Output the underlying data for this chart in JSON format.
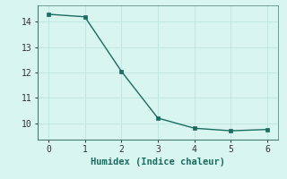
{
  "x": [
    0,
    1,
    2,
    3,
    4,
    5,
    6
  ],
  "y": [
    14.3,
    14.2,
    12.05,
    10.2,
    9.8,
    9.7,
    9.75
  ],
  "line_color": "#1a6b60",
  "marker_color": "#1a6b60",
  "background_color": "#d8f5f0",
  "grid_color": "#c0e8e0",
  "spine_color": "#888888",
  "xlabel": "Humidex (Indice chaleur)",
  "xlim": [
    -0.3,
    6.3
  ],
  "ylim": [
    9.35,
    14.65
  ],
  "yticks": [
    10,
    11,
    12,
    13,
    14
  ],
  "xticks": [
    0,
    1,
    2,
    3,
    4,
    5,
    6
  ],
  "label_fontsize": 7.5,
  "tick_fontsize": 7,
  "line_width": 1.0,
  "marker_size": 2.8
}
